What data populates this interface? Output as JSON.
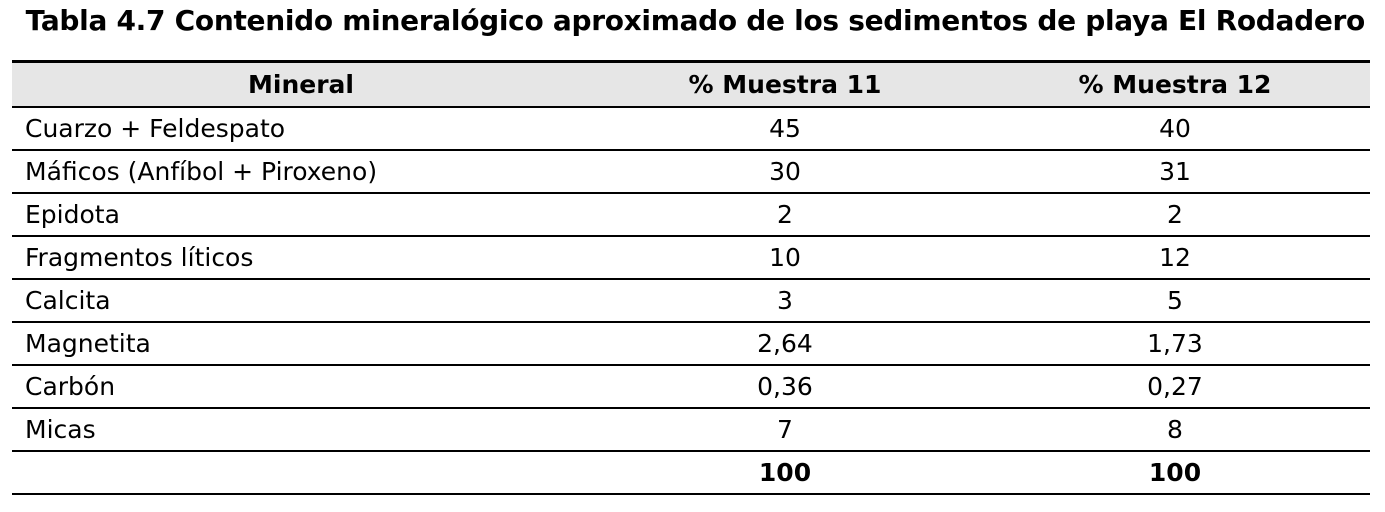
{
  "title": "Tabla 4.7 Contenido mineralógico aproximado de los sedimentos de playa El Rodadero",
  "table": {
    "header": [
      "Mineral",
      "% Muestra 11",
      "% Muestra 12"
    ],
    "rows": [
      [
        "Cuarzo + Feldespato",
        "45",
        "40"
      ],
      [
        "Máficos (Anfíbol + Piroxeno)",
        "30",
        "31"
      ],
      [
        "Epidota",
        "2",
        "2"
      ],
      [
        "Fragmentos líticos",
        "10",
        "12"
      ],
      [
        "Calcita",
        "3",
        "5"
      ],
      [
        "Magnetita",
        "2,64",
        "1,73"
      ],
      [
        "Carbón",
        "0,36",
        "0,27"
      ],
      [
        "Micas",
        "7",
        "8"
      ]
    ],
    "total": [
      "100",
      "100"
    ]
  }
}
